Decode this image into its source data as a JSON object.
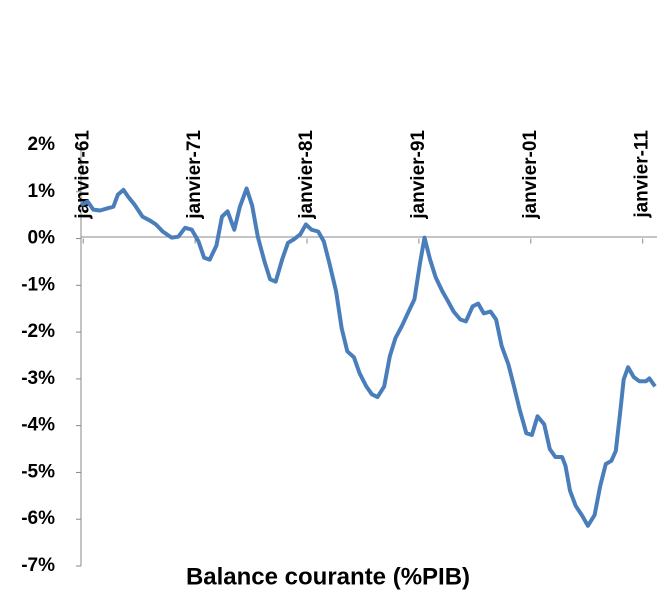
{
  "chart_data": {
    "type": "line",
    "title": "Balance courante (%PIB)",
    "x": [
      1960.8,
      1961.4,
      1961.9,
      1962.5,
      1963.1,
      1963.7,
      1964.1,
      1964.6,
      1965.0,
      1965.6,
      1966.3,
      1967.0,
      1967.5,
      1968.1,
      1968.9,
      1969.5,
      1970.1,
      1970.7,
      1971.3,
      1971.8,
      1972.3,
      1972.9,
      1973.4,
      1973.9,
      1974.5,
      1975.0,
      1975.6,
      1976.1,
      1976.6,
      1977.2,
      1977.7,
      1978.2,
      1978.8,
      1979.3,
      1979.8,
      1980.4,
      1980.9,
      1981.4,
      1982.0,
      1982.5,
      1983.0,
      1983.6,
      1984.1,
      1984.6,
      1985.2,
      1985.7,
      1986.3,
      1986.8,
      1987.3,
      1987.9,
      1988.4,
      1988.9,
      1989.5,
      1990.0,
      1990.6,
      1991.1,
      1991.5,
      1992.0,
      1992.5,
      1993.1,
      1993.6,
      1994.1,
      1994.7,
      1995.2,
      1995.8,
      1996.3,
      1996.8,
      1997.4,
      1997.9,
      1998.4,
      1999.0,
      1999.5,
      2000.0,
      2000.6,
      2001.1,
      2001.6,
      2002.2,
      2002.7,
      2003.2,
      2003.8,
      2004.1,
      2004.5,
      2005.0,
      2005.6,
      2006.1,
      2006.7,
      2007.2,
      2007.7,
      2008.2,
      2008.6,
      2009.0,
      2009.3,
      2009.7,
      2010.2,
      2010.7,
      2011.3,
      2011.6,
      2012.1
    ],
    "series": [
      {
        "name": "Balance courante",
        "color": "#4a7ebb",
        "values": [
          0.72,
          0.79,
          0.62,
          0.6,
          0.64,
          0.68,
          0.94,
          1.04,
          0.9,
          0.72,
          0.47,
          0.38,
          0.3,
          0.15,
          0.02,
          0.04,
          0.23,
          0.19,
          -0.06,
          -0.41,
          -0.45,
          -0.15,
          0.47,
          0.58,
          0.19,
          0.68,
          1.07,
          0.7,
          0.04,
          -0.49,
          -0.87,
          -0.92,
          -0.43,
          -0.09,
          -0.02,
          0.09,
          0.3,
          0.19,
          0.15,
          -0.06,
          -0.53,
          -1.13,
          -1.92,
          -2.41,
          -2.54,
          -2.88,
          -3.16,
          -3.33,
          -3.39,
          -3.16,
          -2.52,
          -2.13,
          -1.86,
          -1.6,
          -1.3,
          -0.53,
          0.02,
          -0.45,
          -0.83,
          -1.13,
          -1.34,
          -1.56,
          -1.73,
          -1.77,
          -1.45,
          -1.39,
          -1.6,
          -1.56,
          -1.73,
          -2.3,
          -2.69,
          -3.16,
          -3.65,
          -4.16,
          -4.2,
          -3.8,
          -3.97,
          -4.5,
          -4.67,
          -4.67,
          -4.86,
          -5.39,
          -5.71,
          -5.93,
          -6.14,
          -5.91,
          -5.29,
          -4.82,
          -4.75,
          -4.54,
          -3.69,
          -3.01,
          -2.75,
          -2.96,
          -3.05,
          -3.05,
          -2.99,
          -3.16
        ]
      }
    ],
    "xlim": [
      1960.8,
      2012.1
    ],
    "xticks": [
      {
        "value": 1961,
        "label": "janvier-61"
      },
      {
        "value": 1971,
        "label": "janvier-71"
      },
      {
        "value": 1981,
        "label": "janvier-81"
      },
      {
        "value": 1991,
        "label": "janvier-91"
      },
      {
        "value": 2001,
        "label": "janvier-01"
      },
      {
        "value": 2011,
        "label": "janvier-11"
      }
    ],
    "ylim": [
      -7,
      2
    ],
    "yticks": [
      {
        "value": 2,
        "label": "2%"
      },
      {
        "value": 1,
        "label": "1%"
      },
      {
        "value": 0,
        "label": "0%"
      },
      {
        "value": -1,
        "label": "-1%"
      },
      {
        "value": -2,
        "label": "-2%"
      },
      {
        "value": -3,
        "label": "-3%"
      },
      {
        "value": -4,
        "label": "-4%"
      },
      {
        "value": -5,
        "label": "-5%"
      },
      {
        "value": -6,
        "label": "-6%"
      },
      {
        "value": -7,
        "label": "-7%"
      }
    ]
  }
}
